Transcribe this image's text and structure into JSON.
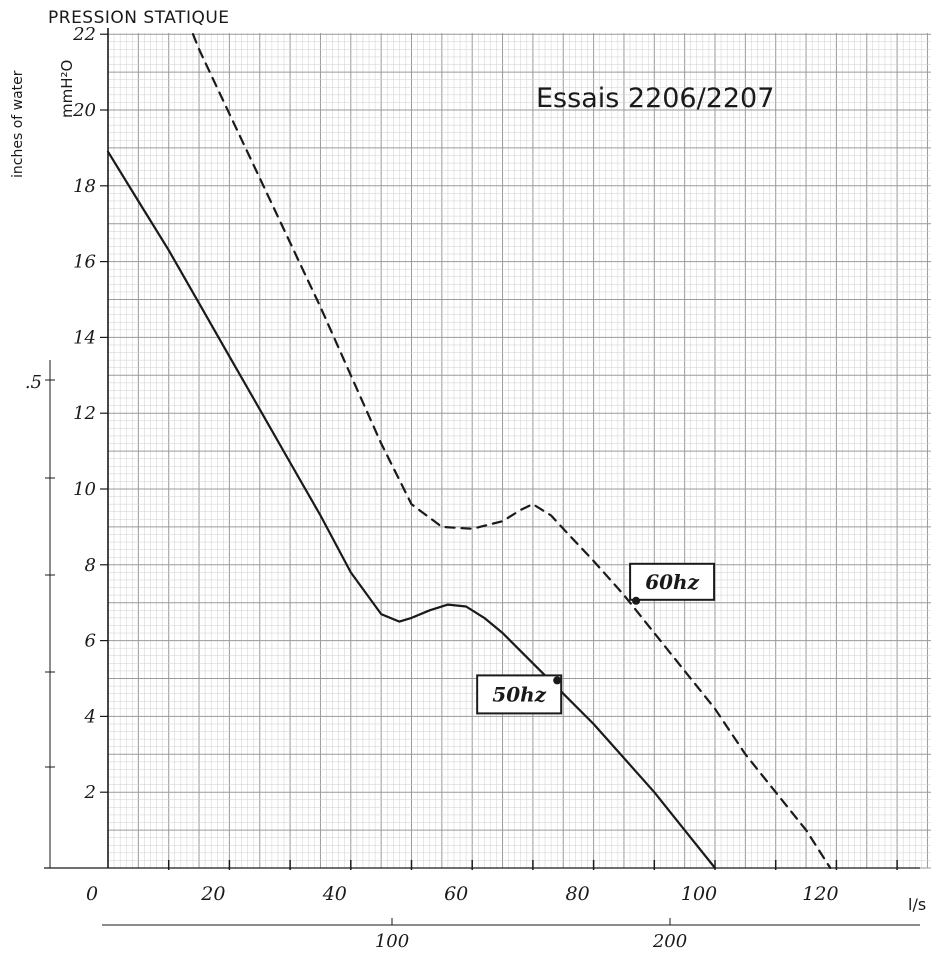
{
  "header": {
    "title": "PRESSION STATIQUE",
    "test_label": "Essais 2206/2207"
  },
  "colors": {
    "paper": "#ffffff",
    "grid_minor": "#cfcfcf",
    "grid_major": "#9a9a9a",
    "ink": "#1a1a1a"
  },
  "chart_data": {
    "type": "line",
    "title": "PRESSION STATIQUE",
    "subtitle": "Essais 2206/2207",
    "xlabel": "l/s",
    "ylabel": "mmH²O",
    "ylabel_secondary": "inches of water",
    "xlim": [
      0,
      140
    ],
    "ylim": [
      0,
      22
    ],
    "x_ticks": [
      "0",
      "20",
      "40",
      "60",
      "80",
      "100",
      "120"
    ],
    "y_ticks": [
      "2",
      "4",
      "6",
      "8",
      "10",
      "12",
      "14",
      "16",
      "18",
      "20",
      "22"
    ],
    "secondary_y_ticks": [
      ".5"
    ],
    "secondary_x_ticks": [
      "100",
      "200"
    ],
    "grid": true,
    "series": [
      {
        "name": "50hz",
        "style": "solid",
        "x": [
          0,
          5,
          10,
          15,
          20,
          25,
          30,
          35,
          40,
          45,
          48,
          50,
          53,
          56,
          59,
          62,
          65,
          70,
          75,
          80,
          85,
          90,
          95,
          100
        ],
        "y": [
          18.9,
          17.6,
          16.3,
          14.9,
          13.5,
          12.1,
          10.7,
          9.3,
          7.8,
          6.7,
          6.5,
          6.6,
          6.8,
          6.95,
          6.9,
          6.6,
          6.2,
          5.4,
          4.6,
          3.8,
          2.9,
          2.0,
          1.0,
          0.0
        ]
      },
      {
        "name": "60hz",
        "style": "dashed",
        "x": [
          14,
          15,
          20,
          25,
          30,
          35,
          40,
          45,
          50,
          55,
          60,
          65,
          68,
          70,
          73,
          75,
          80,
          85,
          90,
          95,
          100,
          105,
          110,
          115,
          119
        ],
        "y": [
          22.0,
          21.6,
          19.9,
          18.2,
          16.5,
          14.8,
          13.0,
          11.2,
          9.6,
          9.0,
          8.95,
          9.15,
          9.45,
          9.6,
          9.3,
          8.95,
          8.1,
          7.2,
          6.2,
          5.2,
          4.2,
          3.0,
          2.0,
          1.0,
          0.0
        ]
      }
    ],
    "annotations": [
      {
        "text": "50hz",
        "series": "50hz",
        "x": 74,
        "y": 4.95
      },
      {
        "text": "60hz",
        "series": "60hz",
        "x": 87,
        "y": 7.05
      }
    ]
  }
}
